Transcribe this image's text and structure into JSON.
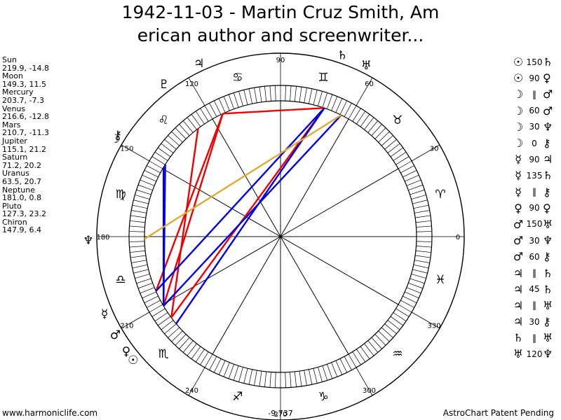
{
  "title": {
    "line1": "1942-11-03 - Martin Cruz Smith, Am",
    "line2": "erican author and screenwriter..."
  },
  "planets": [
    {
      "name": "Sun",
      "coords": "219.9, -14.8",
      "glyph": "☉",
      "lon": 219.9
    },
    {
      "name": "Moon",
      "coords": "149.3, 11.5",
      "glyph": "☽",
      "lon": 149.3
    },
    {
      "name": "Mercury",
      "coords": "203.7, -7.3",
      "glyph": "☿",
      "lon": 203.7
    },
    {
      "name": "Venus",
      "coords": "216.6, -12.8",
      "glyph": "♀",
      "lon": 216.6
    },
    {
      "name": "Mars",
      "coords": "210.7, -11.3",
      "glyph": "♂",
      "lon": 210.7
    },
    {
      "name": "Jupiter",
      "coords": "115.1, 21.2",
      "glyph": "♃",
      "lon": 115.1
    },
    {
      "name": "Saturn",
      "coords": "71.2, 20.2",
      "glyph": "♄",
      "lon": 71.2
    },
    {
      "name": "Uranus",
      "coords": "63.5, 20.7",
      "glyph": "♅",
      "lon": 63.5
    },
    {
      "name": "Neptune",
      "coords": "181.0, 0.8",
      "glyph": "♆",
      "lon": 181.0
    },
    {
      "name": "Pluto",
      "coords": "127.3, 23.2",
      "glyph": "♇",
      "lon": 127.3
    },
    {
      "name": "Chiron",
      "coords": "147.9, 6.4",
      "glyph": "⚷",
      "lon": 147.9
    }
  ],
  "aspects": [
    {
      "p1": "☉",
      "sym": "150",
      "p2": "♄"
    },
    {
      "p1": "☉",
      "sym": "90",
      "p2": "♀"
    },
    {
      "p1": "☽",
      "sym": "‖",
      "p2": "♂"
    },
    {
      "p1": "☽",
      "sym": "60",
      "p2": "♂"
    },
    {
      "p1": "☽",
      "sym": "30",
      "p2": "♆"
    },
    {
      "p1": "☽",
      "sym": "0",
      "p2": "⚷"
    },
    {
      "p1": "☿",
      "sym": "90",
      "p2": "♃"
    },
    {
      "p1": "☿",
      "sym": "135",
      "p2": "♄"
    },
    {
      "p1": "☿",
      "sym": "‖",
      "p2": "⚷"
    },
    {
      "p1": "♀",
      "sym": "90",
      "p2": "♀"
    },
    {
      "p1": "♂",
      "sym": "150",
      "p2": "♅"
    },
    {
      "p1": "♂",
      "sym": "30",
      "p2": "♆"
    },
    {
      "p1": "♂",
      "sym": "60",
      "p2": "⚷"
    },
    {
      "p1": "♃",
      "sym": "‖",
      "p2": "♄"
    },
    {
      "p1": "♃",
      "sym": "45",
      "p2": "♄"
    },
    {
      "p1": "♃",
      "sym": "‖",
      "p2": "♅"
    },
    {
      "p1": "♃",
      "sym": "30",
      "p2": "⚷"
    },
    {
      "p1": "♄",
      "sym": "‖",
      "p2": "♅"
    },
    {
      "p1": "♅",
      "sym": "120",
      "p2": "♆"
    }
  ],
  "wheel": {
    "degree_labels": [
      "0",
      "30",
      "60",
      "90",
      "120",
      "150",
      "180",
      "210",
      "240",
      "270",
      "300",
      "330"
    ],
    "signs": [
      "♈",
      "♉",
      "♊",
      "♋",
      "♌",
      "♍",
      "♎",
      "♏",
      "♐",
      "♑",
      "♒",
      "♓"
    ],
    "bottom_value": "-9,737",
    "colors": {
      "red": "#ee0000",
      "blue": "#0000dd",
      "gold": "#ddaa33",
      "line": "#000000"
    }
  },
  "aspect_lines": [
    {
      "a": 115.1,
      "b": 210.7,
      "color": "red"
    },
    {
      "a": 115.1,
      "b": 203.7,
      "color": "red"
    },
    {
      "a": 71.2,
      "b": 216.6,
      "color": "red"
    },
    {
      "a": 127.3,
      "b": 216.6,
      "color": "red"
    },
    {
      "a": 115.1,
      "b": 71.2,
      "color": "red"
    },
    {
      "a": 149.3,
      "b": 210.7,
      "color": "blue"
    },
    {
      "a": 147.9,
      "b": 210.7,
      "color": "blue"
    },
    {
      "a": 63.5,
      "b": 210.7,
      "color": "blue"
    },
    {
      "a": 71.2,
      "b": 203.7,
      "color": "blue"
    },
    {
      "a": 71.2,
      "b": 219.9,
      "color": "blue"
    },
    {
      "a": 63.5,
      "b": 181.0,
      "color": "gold"
    }
  ],
  "footer": {
    "left": "www.harmoniclife.com",
    "right": "AstroChart Patent Pending"
  }
}
